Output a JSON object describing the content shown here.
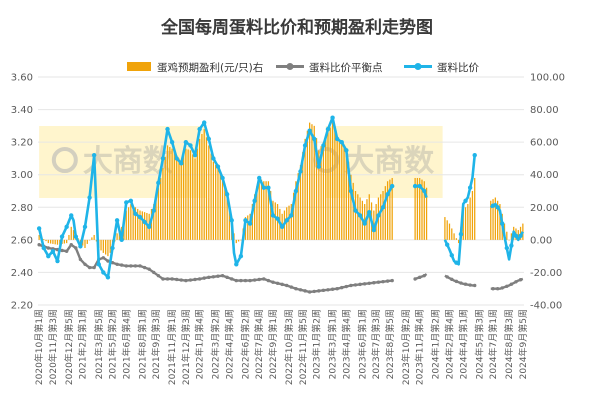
{
  "chart_data": {
    "type": "line",
    "title": "全国每周蛋料比价和预期盈利走势图",
    "legend": {
      "placement": "top",
      "items": [
        {
          "label": "蛋鸡预期盈利(元/只)右",
          "color": "#F0A30A",
          "kind": "bar"
        },
        {
          "label": "蛋料比价平衡点",
          "color": "#7F7F7F",
          "kind": "line-marker"
        },
        {
          "label": "蛋料比价",
          "color": "#1FB4E8",
          "kind": "line-marker"
        }
      ]
    },
    "watermark": "大商数",
    "y_left": {
      "min": 2.2,
      "max": 3.6,
      "ticks": [
        "2.20",
        "2.40",
        "2.60",
        "2.80",
        "3.00",
        "3.20",
        "3.40",
        "3.60"
      ]
    },
    "y_right": {
      "min": -40,
      "max": 100,
      "ticks": [
        "-40.00",
        "-20.00",
        "0.00",
        "20.00",
        "40.00",
        "60.00",
        "80.00",
        "100.00"
      ]
    },
    "x_tick_labels": [
      "2020年10月第1周",
      "2020年11月第3周",
      "2020年12月第5周",
      "2021年2月第1周",
      "2021年3月第5周",
      "2021年5月第2周",
      "2021年6月第4周",
      "2021年8月第1周",
      "2021年9月第3周",
      "2021年11月第1周",
      "2021年12月第3周",
      "2022年1月第4周",
      "2022年3月第2周",
      "2022年4月第4周",
      "2022年6月第2周",
      "2022年7月第4周",
      "2022年9月第1周",
      "2022年10月第3周",
      "2022年11月第5周",
      "2023年1月第2周",
      "2023年3月第1周",
      "2023年4月第4周",
      "2023年6月第1周",
      "2023年7月第3周",
      "2023年8月第5周",
      "2023年10月第2周",
      "2023年11月第4周",
      "2024年1月第2周",
      "2024年2月第4周",
      "2024年4月第1周",
      "2024年5月第3周",
      "2024年7月第1周",
      "2024年8月第3周",
      "2024年9月第5周"
    ],
    "x_count": 212,
    "gap_ranges": [
      [
        155,
        163
      ],
      [
        170,
        176
      ],
      [
        191,
        196
      ]
    ],
    "highlight_bands": [
      {
        "from": 0,
        "to": 73
      },
      {
        "from": 125,
        "to": 176
      }
    ],
    "series": [
      {
        "name": "蛋料比价",
        "axis": "left",
        "color": "#1FB4E8",
        "anchors": [
          [
            0,
            2.67
          ],
          [
            2,
            2.55
          ],
          [
            4,
            2.5
          ],
          [
            6,
            2.53
          ],
          [
            8,
            2.47
          ],
          [
            10,
            2.62
          ],
          [
            12,
            2.68
          ],
          [
            14,
            2.75
          ],
          [
            15,
            2.72
          ],
          [
            16,
            2.62
          ],
          [
            18,
            2.56
          ],
          [
            20,
            2.68
          ],
          [
            22,
            2.86
          ],
          [
            24,
            3.12
          ],
          [
            26,
            2.45
          ],
          [
            28,
            2.4
          ],
          [
            30,
            2.37
          ],
          [
            32,
            2.55
          ],
          [
            34,
            2.72
          ],
          [
            36,
            2.6
          ],
          [
            38,
            2.83
          ],
          [
            40,
            2.84
          ],
          [
            42,
            2.76
          ],
          [
            44,
            2.74
          ],
          [
            46,
            2.71
          ],
          [
            48,
            2.68
          ],
          [
            50,
            2.78
          ],
          [
            52,
            2.95
          ],
          [
            54,
            3.1
          ],
          [
            56,
            3.28
          ],
          [
            58,
            3.2
          ],
          [
            60,
            3.1
          ],
          [
            62,
            3.07
          ],
          [
            64,
            3.2
          ],
          [
            66,
            3.18
          ],
          [
            68,
            3.12
          ],
          [
            70,
            3.28
          ],
          [
            72,
            3.32
          ],
          [
            74,
            3.22
          ],
          [
            76,
            3.1
          ],
          [
            78,
            3.05
          ],
          [
            80,
            2.98
          ],
          [
            82,
            2.88
          ],
          [
            84,
            2.72
          ],
          [
            85,
            2.52
          ],
          [
            86,
            2.45
          ],
          [
            88,
            2.5
          ],
          [
            90,
            2.72
          ],
          [
            92,
            2.7
          ],
          [
            94,
            2.84
          ],
          [
            96,
            2.98
          ],
          [
            98,
            2.92
          ],
          [
            100,
            2.92
          ],
          [
            102,
            2.75
          ],
          [
            104,
            2.73
          ],
          [
            106,
            2.68
          ],
          [
            108,
            2.72
          ],
          [
            110,
            2.75
          ],
          [
            112,
            2.9
          ],
          [
            114,
            3.02
          ],
          [
            116,
            3.18
          ],
          [
            118,
            3.27
          ],
          [
            120,
            3.22
          ],
          [
            122,
            3.05
          ],
          [
            124,
            3.18
          ],
          [
            126,
            3.28
          ],
          [
            128,
            3.35
          ],
          [
            130,
            3.22
          ],
          [
            132,
            3.2
          ],
          [
            134,
            3.15
          ],
          [
            136,
            2.9
          ],
          [
            138,
            2.78
          ],
          [
            140,
            2.75
          ],
          [
            142,
            2.7
          ],
          [
            144,
            2.77
          ],
          [
            146,
            2.66
          ],
          [
            148,
            2.75
          ],
          [
            150,
            2.8
          ],
          [
            152,
            2.88
          ],
          [
            154,
            2.93
          ],
          [
            164,
            2.93
          ],
          [
            166,
            2.93
          ],
          [
            168,
            2.9
          ],
          [
            169,
            2.86
          ],
          [
            177,
            2.6
          ],
          [
            179,
            2.54
          ],
          [
            181,
            2.47
          ],
          [
            183,
            2.45
          ],
          [
            185,
            2.82
          ],
          [
            187,
            2.86
          ],
          [
            189,
            2.98
          ],
          [
            190,
            3.12
          ],
          [
            197,
            2.8
          ],
          [
            199,
            2.82
          ],
          [
            201,
            2.78
          ],
          [
            203,
            2.62
          ],
          [
            205,
            2.48
          ],
          [
            207,
            2.65
          ],
          [
            209,
            2.6
          ],
          [
            211,
            2.65
          ]
        ]
      },
      {
        "name": "蛋料比价平衡点",
        "axis": "left",
        "color": "#7F7F7F",
        "anchors": [
          [
            0,
            2.57
          ],
          [
            4,
            2.55
          ],
          [
            8,
            2.54
          ],
          [
            12,
            2.53
          ],
          [
            14,
            2.57
          ],
          [
            16,
            2.55
          ],
          [
            18,
            2.48
          ],
          [
            20,
            2.45
          ],
          [
            22,
            2.43
          ],
          [
            24,
            2.43
          ],
          [
            26,
            2.48
          ],
          [
            28,
            2.49
          ],
          [
            30,
            2.47
          ],
          [
            34,
            2.45
          ],
          [
            38,
            2.44
          ],
          [
            44,
            2.44
          ],
          [
            48,
            2.42
          ],
          [
            50,
            2.4
          ],
          [
            54,
            2.36
          ],
          [
            58,
            2.36
          ],
          [
            64,
            2.35
          ],
          [
            70,
            2.36
          ],
          [
            74,
            2.37
          ],
          [
            80,
            2.38
          ],
          [
            86,
            2.35
          ],
          [
            92,
            2.35
          ],
          [
            98,
            2.36
          ],
          [
            102,
            2.34
          ],
          [
            108,
            2.32
          ],
          [
            112,
            2.3
          ],
          [
            118,
            2.28
          ],
          [
            124,
            2.29
          ],
          [
            130,
            2.3
          ],
          [
            136,
            2.32
          ],
          [
            142,
            2.33
          ],
          [
            148,
            2.34
          ],
          [
            154,
            2.35
          ],
          [
            164,
            2.36
          ],
          [
            166,
            2.37
          ],
          [
            168,
            2.38
          ],
          [
            169,
            2.39
          ],
          [
            177,
            2.38
          ],
          [
            181,
            2.35
          ],
          [
            185,
            2.33
          ],
          [
            189,
            2.32
          ],
          [
            190,
            2.32
          ],
          [
            197,
            2.3
          ],
          [
            201,
            2.3
          ],
          [
            205,
            2.32
          ],
          [
            209,
            2.35
          ],
          [
            211,
            2.36
          ]
        ]
      },
      {
        "name": "蛋鸡预期盈利(元/只)右",
        "axis": "right",
        "color": "#F0A30A",
        "anchors": [
          [
            0,
            3
          ],
          [
            4,
            -2
          ],
          [
            8,
            -3
          ],
          [
            12,
            -2
          ],
          [
            14,
            8
          ],
          [
            16,
            4
          ],
          [
            18,
            -2
          ],
          [
            20,
            -5
          ],
          [
            22,
            0
          ],
          [
            24,
            3
          ],
          [
            26,
            -5
          ],
          [
            28,
            -8
          ],
          [
            30,
            -10
          ],
          [
            32,
            -6
          ],
          [
            34,
            4
          ],
          [
            36,
            8
          ],
          [
            38,
            18
          ],
          [
            40,
            22
          ],
          [
            42,
            20
          ],
          [
            44,
            18
          ],
          [
            46,
            17
          ],
          [
            48,
            16
          ],
          [
            50,
            22
          ],
          [
            52,
            32
          ],
          [
            54,
            44
          ],
          [
            56,
            58
          ],
          [
            58,
            56
          ],
          [
            60,
            52
          ],
          [
            62,
            48
          ],
          [
            64,
            56
          ],
          [
            66,
            55
          ],
          [
            68,
            50
          ],
          [
            70,
            62
          ],
          [
            72,
            68
          ],
          [
            74,
            58
          ],
          [
            76,
            48
          ],
          [
            78,
            44
          ],
          [
            80,
            38
          ],
          [
            82,
            28
          ],
          [
            84,
            14
          ],
          [
            85,
            4
          ],
          [
            86,
            -2
          ],
          [
            88,
            0
          ],
          [
            90,
            14
          ],
          [
            92,
            16
          ],
          [
            94,
            28
          ],
          [
            96,
            38
          ],
          [
            98,
            36
          ],
          [
            100,
            36
          ],
          [
            102,
            24
          ],
          [
            104,
            22
          ],
          [
            106,
            16
          ],
          [
            108,
            20
          ],
          [
            110,
            22
          ],
          [
            112,
            36
          ],
          [
            114,
            46
          ],
          [
            116,
            62
          ],
          [
            118,
            72
          ],
          [
            120,
            70
          ],
          [
            122,
            55
          ],
          [
            124,
            60
          ],
          [
            126,
            66
          ],
          [
            128,
            72
          ],
          [
            130,
            62
          ],
          [
            132,
            60
          ],
          [
            134,
            56
          ],
          [
            136,
            40
          ],
          [
            138,
            30
          ],
          [
            140,
            26
          ],
          [
            142,
            22
          ],
          [
            144,
            28
          ],
          [
            146,
            18
          ],
          [
            148,
            26
          ],
          [
            150,
            30
          ],
          [
            152,
            36
          ],
          [
            154,
            38
          ],
          [
            164,
            38
          ],
          [
            166,
            38
          ],
          [
            168,
            36
          ],
          [
            169,
            32
          ],
          [
            177,
            14
          ],
          [
            179,
            10
          ],
          [
            181,
            4
          ],
          [
            183,
            -2
          ],
          [
            185,
            18
          ],
          [
            187,
            22
          ],
          [
            189,
            30
          ],
          [
            190,
            38
          ],
          [
            197,
            24
          ],
          [
            199,
            26
          ],
          [
            201,
            22
          ],
          [
            203,
            10
          ],
          [
            205,
            0
          ],
          [
            207,
            8
          ],
          [
            209,
            6
          ],
          [
            211,
            10
          ]
        ]
      }
    ]
  }
}
